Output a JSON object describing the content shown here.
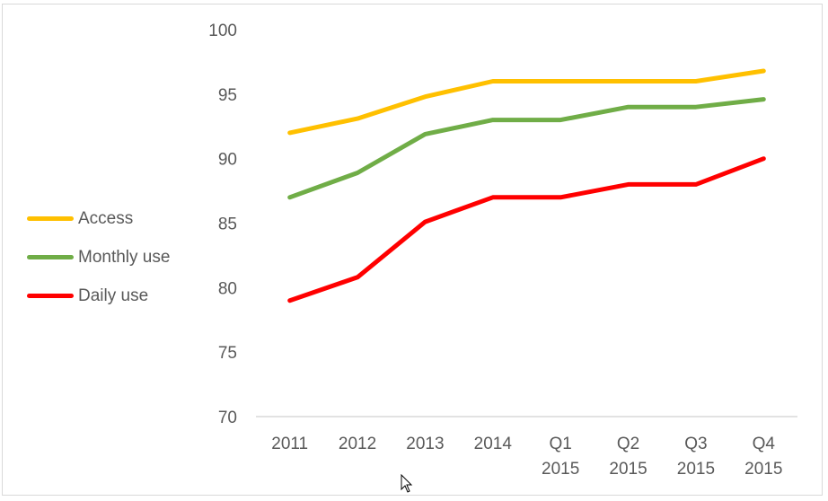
{
  "chart_data": {
    "type": "line",
    "title": "",
    "xlabel": "",
    "ylabel": "",
    "categories": [
      "2011",
      "2012",
      "2013",
      "2014",
      "Q1 2015",
      "Q2 2015",
      "Q3 2015",
      "Q4 2015"
    ],
    "category_lines": [
      [
        "2011"
      ],
      [
        "2012"
      ],
      [
        "2013"
      ],
      [
        "2014"
      ],
      [
        "Q1",
        "2015"
      ],
      [
        "Q2",
        "2015"
      ],
      [
        "Q3",
        "2015"
      ],
      [
        "Q4",
        "2015"
      ]
    ],
    "ylim": [
      70,
      100
    ],
    "yticks": [
      70,
      75,
      80,
      85,
      90,
      95,
      100
    ],
    "grid": false,
    "legend_position": "left",
    "series": [
      {
        "name": "Access",
        "color": "#FFC000",
        "values": [
          92,
          93.1,
          94.8,
          96,
          96,
          96,
          96,
          96.8
        ]
      },
      {
        "name": "Monthly use",
        "color": "#70AD47",
        "values": [
          87,
          88.9,
          91.9,
          93,
          93,
          94,
          94,
          94.6
        ]
      },
      {
        "name": "Daily use",
        "color": "#FF0000",
        "values": [
          79,
          80.8,
          85.1,
          87,
          87,
          88,
          88,
          90
        ]
      }
    ]
  }
}
